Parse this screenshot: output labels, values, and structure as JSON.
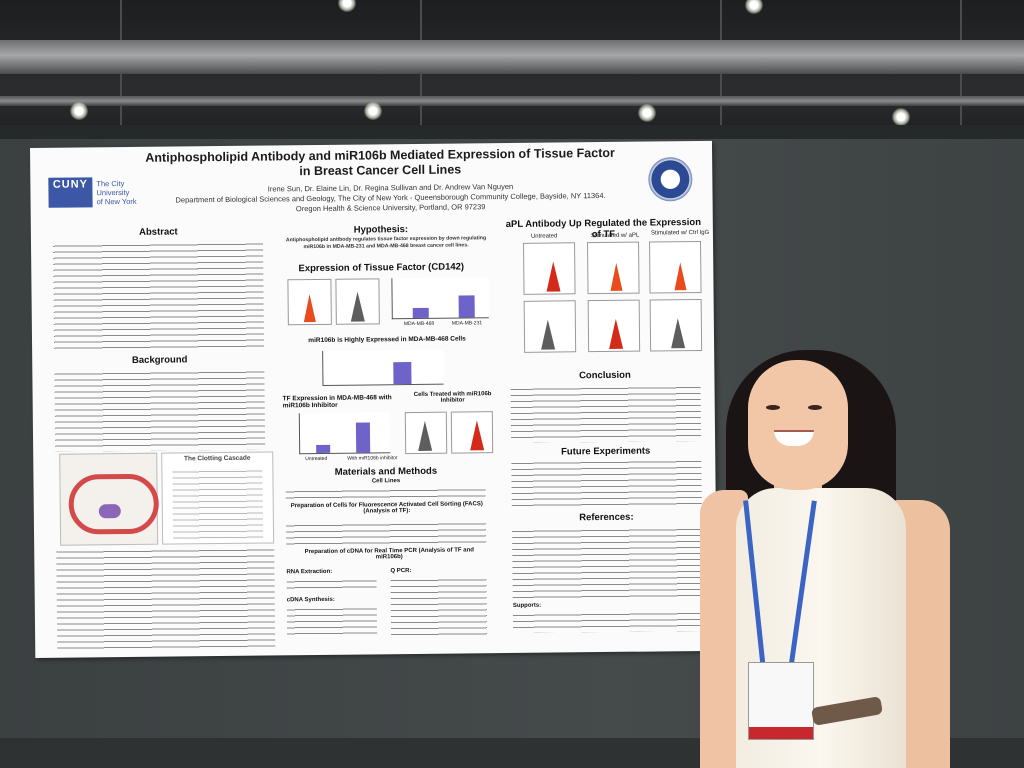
{
  "poster": {
    "title_line1": "Antiphospholipid Antibody and miR106b Mediated Expression of Tissue Factor",
    "title_line2": "in Breast Cancer Cell Lines",
    "authors": "Irene Sun, Dr. Elaine Lin, Dr. Regina Sullivan and Dr. Andrew Van Nguyen",
    "affiliation1": "Department of Biological Sciences and Geology, The City of New York - Queensborough Community College, Bayside, NY 11364.",
    "affiliation2": "Oregon Health & Science University, Portland, OR 97239",
    "logo_text": "CUNY",
    "logo_caption_1": "The City",
    "logo_caption_2": "University",
    "logo_caption_3": "of New York",
    "sections": {
      "abstract": "Abstract",
      "background": "Background",
      "hypothesis": "Hypothesis:",
      "hypothesis_text": "Antiphospholipid antibody regulates tissue factor expression by down regulating miR106b in MDA-MB-231 and MDA-MB-468 breast cancer cell lines.",
      "expression_tf": "Expression of Tissue Factor (CD142)",
      "mir_highly": "miR106b is Highly Expressed in MDA-MB-468 Cells",
      "tf_inhibitor": "TF Expression in MDA-MB-468 with miR106b Inhibitor",
      "cells_treated": "Cells Treated with miR106b Inhibitor",
      "materials": "Materials and Methods",
      "cell_lines": "Cell Lines",
      "facs": "Preparation of Cells for Fluorescence Activated Cell Sorting (FACS) (Analysis of TF):",
      "cdna": "Preparation of cDNA for Real Time PCR (Analysis of TF and miR106b)",
      "rna_extraction": "RNA Extraction:",
      "cdna_synthesis": "cDNA Synthesis:",
      "qpcr": "Q PCR:",
      "apl_up": "aPL Antibody Up Regulated the Expression of TF",
      "untreated": "Untreated",
      "stimulated_apl": "Stimulated w/ aPL",
      "stimulated_ctrl": "Stimulated w/ Ctrl IgG",
      "conclusion": "Conclusion",
      "future": "Future Experiments",
      "references": "References:",
      "supports": "Supports:",
      "clotting_cascade": "The Clotting Cascade"
    },
    "chart_labels": {
      "mda_mb_468": "MDA-MB-468",
      "mda_mb_231": "MDA-MB-231",
      "untreated": "Untreated",
      "with_inhibitor": "With miR106b inhibitor"
    }
  }
}
